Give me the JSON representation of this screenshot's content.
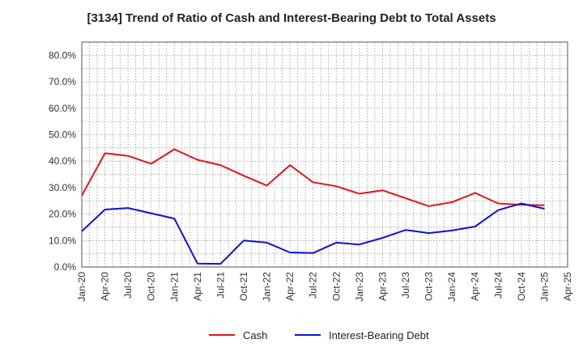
{
  "chart_data": {
    "type": "line",
    "title": "[3134]  Trend of Ratio of Cash and Interest-Bearing Debt to Total Assets",
    "xlabel": "",
    "ylabel": "",
    "ylim": [
      0,
      85
    ],
    "yticks": [
      0,
      10,
      20,
      30,
      40,
      50,
      60,
      70,
      80
    ],
    "ytick_labels": [
      "0.0%",
      "10.0%",
      "20.0%",
      "30.0%",
      "40.0%",
      "50.0%",
      "60.0%",
      "70.0%",
      "80.0%"
    ],
    "x_tick_labels": [
      "Jan-20",
      "Apr-20",
      "Jul-20",
      "Oct-20",
      "Jan-21",
      "Apr-21",
      "Jul-21",
      "Oct-21",
      "Jan-22",
      "Apr-22",
      "Jul-22",
      "Oct-22",
      "Jan-23",
      "Apr-23",
      "Jul-23",
      "Oct-23",
      "Jan-24",
      "Apr-24",
      "Jul-24",
      "Oct-24",
      "Jan-25",
      "Apr-25"
    ],
    "x": [
      "Jan-20",
      "Apr-20",
      "Jul-20",
      "Oct-20",
      "Jan-21",
      "Apr-21",
      "Jul-21",
      "Oct-21",
      "Jan-22",
      "Apr-22",
      "Jul-22",
      "Oct-22",
      "Jan-23",
      "Apr-23",
      "Jul-23",
      "Oct-23",
      "Jan-24",
      "Apr-24",
      "Jul-24",
      "Oct-24",
      "Jan-25"
    ],
    "grid": true,
    "legend_position": "bottom",
    "series": [
      {
        "name": "Cash",
        "color": "#e8131b",
        "values": [
          27.0,
          43.0,
          42.0,
          39.0,
          44.5,
          40.5,
          38.5,
          34.5,
          30.8,
          38.5,
          32.0,
          30.5,
          27.7,
          29.0,
          26.0,
          23.0,
          24.5,
          28.0,
          24.0,
          23.5,
          23.3
        ]
      },
      {
        "name": "Interest-Bearing Debt",
        "color": "#1010dd",
        "values": [
          13.5,
          21.7,
          22.3,
          20.3,
          18.3,
          1.3,
          1.2,
          10.0,
          9.2,
          5.5,
          5.3,
          9.2,
          8.5,
          11.0,
          14.0,
          12.8,
          13.8,
          15.3,
          21.5,
          24.0,
          22.0
        ]
      }
    ]
  }
}
